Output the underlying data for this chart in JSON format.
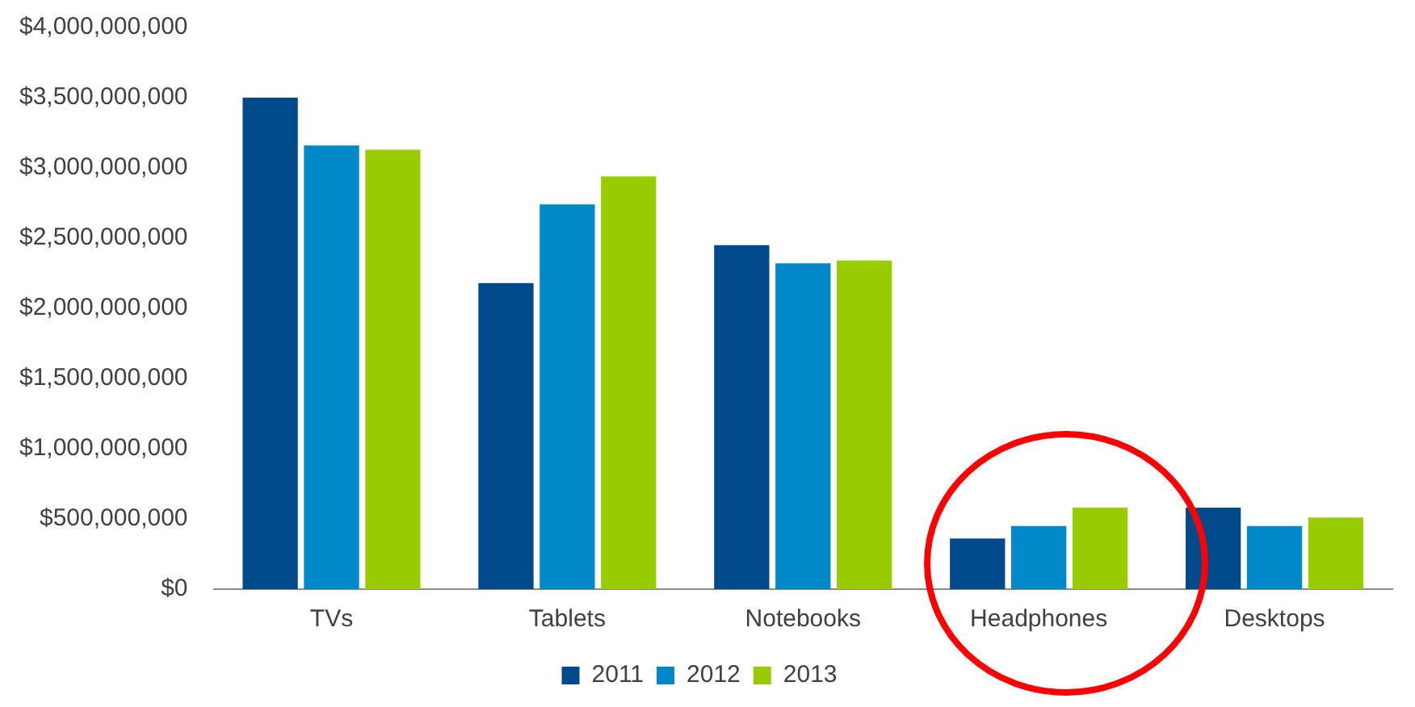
{
  "chart_data": {
    "type": "bar",
    "categories": [
      "TVs",
      "Tablets",
      "Notebooks",
      "Headphones",
      "Desktops"
    ],
    "series": [
      {
        "name": "2011",
        "color": "#004a8c",
        "values": [
          3500000000,
          2180000000,
          2450000000,
          360000000,
          580000000
        ]
      },
      {
        "name": "2012",
        "color": "#0088c8",
        "values": [
          3160000000,
          2740000000,
          2320000000,
          450000000,
          450000000
        ]
      },
      {
        "name": "2013",
        "color": "#99cc00",
        "values": [
          3130000000,
          2940000000,
          2340000000,
          580000000,
          510000000
        ]
      }
    ],
    "ylim": [
      0,
      4000000000
    ],
    "yticks": [
      {
        "value": 0,
        "label": "$0"
      },
      {
        "value": 500000000,
        "label": "$500,000,000"
      },
      {
        "value": 1000000000,
        "label": "$1,000,000,000"
      },
      {
        "value": 1500000000,
        "label": "$1,500,000,000"
      },
      {
        "value": 2000000000,
        "label": "$2,000,000,000"
      },
      {
        "value": 2500000000,
        "label": "$2,500,000,000"
      },
      {
        "value": 3000000000,
        "label": "$3,000,000,000"
      },
      {
        "value": 3500000000,
        "label": "$3,500,000,000"
      },
      {
        "value": 4000000000,
        "label": "$4,000,000,000"
      }
    ],
    "grid": false,
    "legend": "bottom"
  }
}
